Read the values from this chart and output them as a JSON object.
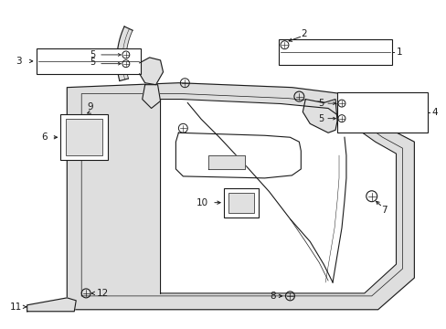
{
  "bg_color": "#ffffff",
  "line_color": "#1a1a1a",
  "gray_fill": "#c8c8c8",
  "light_gray": "#e0e0e0",
  "mid_gray": "#b0b0b0",
  "fig_width": 4.89,
  "fig_height": 3.6,
  "dpi": 100
}
